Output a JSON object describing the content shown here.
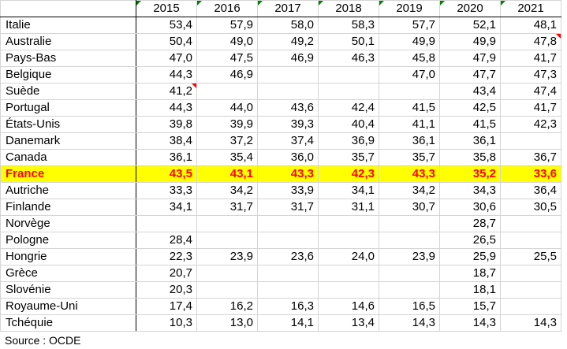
{
  "years": [
    "2015",
    "2016",
    "2017",
    "2018",
    "2019",
    "2020",
    "2021"
  ],
  "rows": [
    {
      "country": "Italie",
      "values": [
        "53,4",
        "57,9",
        "58,0",
        "58,3",
        "57,7",
        "52,1",
        "48,1"
      ],
      "highlight": false
    },
    {
      "country": "Australie",
      "values": [
        "50,4",
        "49,0",
        "49,2",
        "50,1",
        "49,9",
        "49,9",
        "47,8"
      ],
      "highlight": false
    },
    {
      "country": "Pays-Bas",
      "values": [
        "47,0",
        "47,5",
        "46,9",
        "46,3",
        "45,8",
        "47,9",
        "41,7"
      ],
      "highlight": false
    },
    {
      "country": "Belgique",
      "values": [
        "44,3",
        "46,9",
        "",
        "",
        "47,0",
        "47,7",
        "47,3"
      ],
      "highlight": false
    },
    {
      "country": "Suède",
      "values": [
        "41,2",
        "",
        "",
        "",
        "",
        "43,4",
        "47,4"
      ],
      "highlight": false
    },
    {
      "country": "Portugal",
      "values": [
        "44,3",
        "44,0",
        "43,6",
        "42,4",
        "41,5",
        "42,5",
        "41,7"
      ],
      "highlight": false
    },
    {
      "country": "États-Unis",
      "values": [
        "39,8",
        "39,9",
        "39,3",
        "40,4",
        "41,1",
        "41,5",
        "42,3"
      ],
      "highlight": false
    },
    {
      "country": "Danemark",
      "values": [
        "38,4",
        "37,2",
        "37,4",
        "36,9",
        "36,1",
        "36,1",
        ""
      ],
      "highlight": false
    },
    {
      "country": "Canada",
      "values": [
        "36,1",
        "35,4",
        "36,0",
        "35,7",
        "35,7",
        "35,8",
        "36,7"
      ],
      "highlight": false
    },
    {
      "country": "France",
      "values": [
        "43,5",
        "43,1",
        "43,3",
        "42,3",
        "43,3",
        "35,2",
        "33,6"
      ],
      "highlight": true
    },
    {
      "country": "Autriche",
      "values": [
        "33,3",
        "34,2",
        "33,9",
        "34,1",
        "34,2",
        "34,3",
        "36,4"
      ],
      "highlight": false
    },
    {
      "country": "Finlande",
      "values": [
        "34,1",
        "31,7",
        "31,7",
        "31,1",
        "30,7",
        "30,6",
        "30,5"
      ],
      "highlight": false
    },
    {
      "country": "Norvège",
      "values": [
        "",
        "",
        "",
        "",
        "",
        "28,7",
        ""
      ],
      "highlight": false
    },
    {
      "country": "Pologne",
      "values": [
        "28,4",
        "",
        "",
        "",
        "",
        "26,5",
        ""
      ],
      "highlight": false
    },
    {
      "country": "Hongrie",
      "values": [
        "22,3",
        "23,9",
        "23,6",
        "24,0",
        "23,9",
        "25,9",
        "25,5"
      ],
      "highlight": false
    },
    {
      "country": "Grèce",
      "values": [
        "20,7",
        "",
        "",
        "",
        "",
        "18,7",
        ""
      ],
      "highlight": false
    },
    {
      "country": "Slovénie",
      "values": [
        "20,3",
        "",
        "",
        "",
        "",
        "18,1",
        ""
      ],
      "highlight": false
    },
    {
      "country": "Royaume-Uni",
      "values": [
        "17,4",
        "16,2",
        "16,3",
        "14,6",
        "16,5",
        "15,7",
        ""
      ],
      "highlight": false
    },
    {
      "country": "Tchéquie",
      "values": [
        "10,3",
        "13,0",
        "14,1",
        "13,4",
        "14,3",
        "14,3",
        "14,3"
      ],
      "highlight": false
    }
  ],
  "source": "Source : OCDE",
  "colors": {
    "highlight_bg": "#ffff00",
    "highlight_text": "#ff0000",
    "comment_flag": "#ff0000",
    "header_flag": "#008000"
  }
}
